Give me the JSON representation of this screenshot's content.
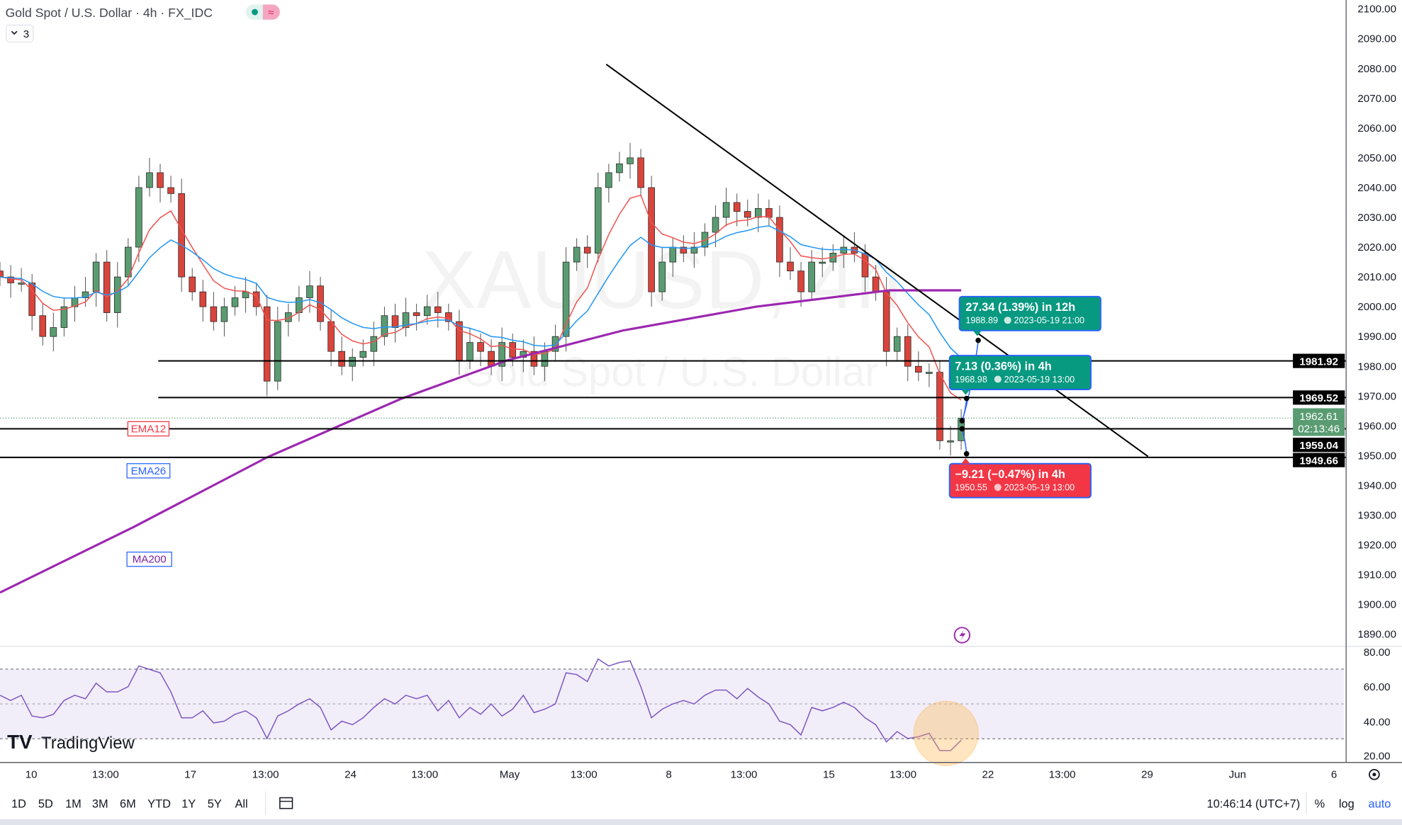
{
  "header": {
    "title": "Gold Spot / U.S. Dollar · 4h · FX_IDC",
    "indicator_count": "3",
    "watermark_symbol": "XAUUSD, 4h",
    "watermark_name": "Gold Spot / U.S. Dollar"
  },
  "legend": {
    "ema12": "EMA12",
    "ema26": "EMA26",
    "ma200": "MA200"
  },
  "colors": {
    "up": "#5a9c72",
    "down": "#d9453c",
    "ema12": "#f05350",
    "ema26": "#2196f3",
    "ma200": "#9c27b0",
    "rsi": "#7e57c2",
    "callout_green": "#089981",
    "callout_red": "#f23645",
    "callout_border": "#2962ff"
  },
  "price_axis": {
    "ticks": [
      "2100.00",
      "2090.00",
      "2080.00",
      "2070.00",
      "2060.00",
      "2050.00",
      "2040.00",
      "2030.00",
      "2020.00",
      "2010.00",
      "2000.00",
      "1990.00",
      "1980.00",
      "1970.00",
      "1960.00",
      "1950.00",
      "1940.00",
      "1930.00",
      "1920.00",
      "1910.00",
      "1900.00",
      "1890.00"
    ],
    "levels": [
      "1981.92",
      "1969.52",
      "1959.04",
      "1949.66"
    ],
    "current_price": "1962.61",
    "countdown": "02:13:46"
  },
  "rsi_axis": {
    "ticks": [
      "80.00",
      "60.00",
      "40.00",
      "20.00"
    ]
  },
  "time_axis": {
    "ticks": [
      "10",
      "13:00",
      "17",
      "13:00",
      "24",
      "13:00",
      "May",
      "13:00",
      "8",
      "13:00",
      "15",
      "13:00",
      "22",
      "13:00",
      "29",
      "Jun",
      "6"
    ]
  },
  "callouts": [
    {
      "main": "27.34 (1.39%) in 12h",
      "price": "1988.89",
      "time": "2023-05-19  21:00"
    },
    {
      "main": "7.13 (0.36%) in 4h",
      "price": "1968.98",
      "time": "2023-05-19  13:00"
    },
    {
      "main": "−9.21 (−0.47%) in 4h",
      "price": "1950.55",
      "time": "2023-05-19  13:00"
    }
  ],
  "toolbar": {
    "ranges": [
      "1D",
      "5D",
      "1M",
      "3M",
      "6M",
      "YTD",
      "1Y",
      "5Y",
      "All"
    ],
    "clock": "10:46:14 (UTC+7)",
    "percent": "%",
    "log": "log",
    "auto": "auto"
  },
  "logo": "TradingView",
  "chart_data": {
    "type": "candlestick",
    "title": "Gold Spot / U.S. Dollar · 4h · FX_IDC",
    "ylim": [
      1890,
      2100
    ],
    "closes": [
      2010,
      2008,
      2008,
      1997,
      1990,
      1993,
      2000,
      2003,
      2005,
      2015,
      1998,
      2010,
      2020,
      2040,
      2045,
      2040,
      2038,
      2010,
      2005,
      2000,
      1995,
      2000,
      2003,
      2005,
      2000,
      1975,
      1995,
      1998,
      2003,
      2007,
      1995,
      1985,
      1980,
      1983,
      1985,
      1990,
      1997,
      1993,
      1998,
      1997,
      2000,
      1998,
      1995,
      1982,
      1988,
      1985,
      1980,
      1988,
      1983,
      1985,
      1980,
      1985,
      1990,
      2015,
      2020,
      2018,
      2040,
      2045,
      2048,
      2050,
      2040,
      2005,
      2015,
      2020,
      2018,
      2020,
      2025,
      2030,
      2035,
      2032,
      2030,
      2033,
      2030,
      2015,
      2012,
      2005,
      2015,
      2015,
      2018,
      2020,
      2018,
      2010,
      2005,
      1985,
      1990,
      1980,
      1978,
      1978,
      1955,
      1955,
      1962.61
    ],
    "ma200": [
      [
        0,
        1904
      ],
      [
        12.5,
        1926
      ],
      [
        25,
        1949.4
      ],
      [
        37.5,
        1969
      ],
      [
        47.5,
        1982
      ],
      [
        58.3,
        1992
      ],
      [
        70.8,
        2000
      ],
      [
        83.3,
        2005.5
      ],
      [
        90,
        2005.5
      ]
    ],
    "rsi": [
      55,
      52,
      55,
      43,
      42,
      44,
      52,
      55,
      53,
      62,
      57,
      57,
      60,
      72,
      70,
      68,
      57,
      42,
      42,
      46,
      39,
      40,
      44,
      46,
      42,
      30,
      43,
      46,
      50,
      53,
      48,
      35,
      40,
      38,
      42,
      48,
      53,
      50,
      55,
      53,
      55,
      46,
      52,
      42,
      48,
      44,
      50,
      43,
      47,
      55,
      45,
      47,
      50,
      68,
      67,
      63,
      76,
      72,
      74,
      75,
      60,
      42,
      47,
      50,
      52,
      50,
      55,
      58,
      58,
      53,
      59,
      54,
      50,
      40,
      38,
      32,
      48,
      46,
      48,
      51,
      48,
      42,
      38,
      28,
      34,
      30,
      31,
      33,
      23,
      23,
      29
    ],
    "rsi_bands": [
      30,
      50,
      70
    ],
    "rsi_ylim": [
      17,
      83
    ],
    "trendline": [
      [
        2082,
        56.6
      ],
      [
        1949.66,
        107.1
      ]
    ],
    "horizontal_levels": [
      1981.92,
      1969.52,
      1959.04,
      1949.66
    ]
  }
}
